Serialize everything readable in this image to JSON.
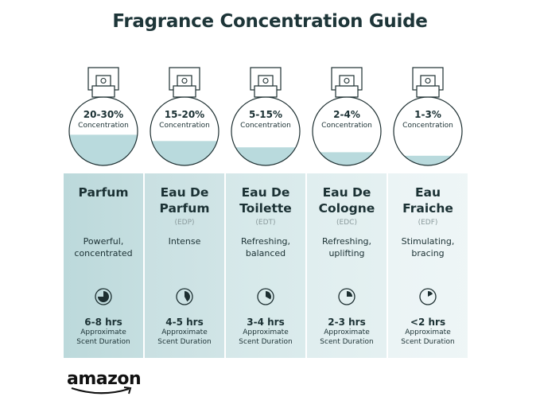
{
  "title": "Fragrance Concentration Guide",
  "colors": {
    "text": "#1b3134",
    "liquid": "#b9dadd",
    "column_backgrounds": [
      "#bcd9db",
      "#c9e0e2",
      "#d5e8e9",
      "#e0eeef",
      "#ebf4f5"
    ]
  },
  "concentration_label": "Concentration",
  "duration_label_line1": "Approximate",
  "duration_label_line2": "Scent Duration",
  "fragrances": [
    {
      "percent": "20-30%",
      "fill_level": 0.45,
      "name": "Parfum",
      "abbr": "",
      "description": "Powerful, concentrated",
      "hours": "6-8 hrs",
      "clock_fraction": 0.75
    },
    {
      "percent": "15-20%",
      "fill_level": 0.36,
      "name": "Eau De Parfum",
      "abbr": "(EDP)",
      "description": "Intense",
      "hours": "4-5 hrs",
      "clock_fraction": 0.42
    },
    {
      "percent": "5-15%",
      "fill_level": 0.27,
      "name": "Eau De Toilette",
      "abbr": "(EDT)",
      "description": "Refreshing, balanced",
      "hours": "3-4 hrs",
      "clock_fraction": 0.33
    },
    {
      "percent": "2-4%",
      "fill_level": 0.2,
      "name": "Eau De Cologne",
      "abbr": "(EDC)",
      "description": "Refreshing, uplifting",
      "hours": "2-3 hrs",
      "clock_fraction": 0.25
    },
    {
      "percent": "1-3%",
      "fill_level": 0.15,
      "name": "Eau Fraiche",
      "abbr": "(EDF)",
      "description": "Stimulating, bracing",
      "hours": "<2 hrs",
      "clock_fraction": 0.17
    }
  ],
  "logo": {
    "text": "amazon",
    "icon": "amazon-smile-arrow"
  }
}
